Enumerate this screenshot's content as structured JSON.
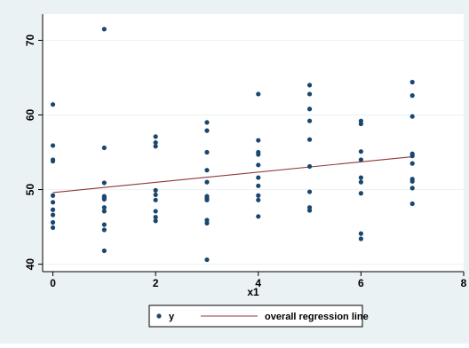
{
  "chart_data": {
    "type": "scatter",
    "title": "",
    "xlabel": "x1",
    "ylabel": "",
    "xlim": [
      -0.2,
      8.0
    ],
    "ylim": [
      39.0,
      73.5
    ],
    "xticks": [
      0,
      2,
      4,
      6,
      8
    ],
    "yticks": [
      40,
      50,
      60,
      70
    ],
    "grid": "horizontal",
    "legend_position": "bottom",
    "series": [
      {
        "name": "y",
        "kind": "scatter",
        "color": "#1a476f",
        "points": [
          [
            0,
            61.4
          ],
          [
            0,
            55.9
          ],
          [
            0,
            54.0
          ],
          [
            0,
            53.8
          ],
          [
            0,
            49.2
          ],
          [
            0,
            48.3
          ],
          [
            0,
            47.3
          ],
          [
            0,
            46.6
          ],
          [
            0,
            45.6
          ],
          [
            0,
            44.9
          ],
          [
            1,
            71.5
          ],
          [
            1,
            55.6
          ],
          [
            1,
            50.9
          ],
          [
            1,
            49.1
          ],
          [
            1,
            48.9
          ],
          [
            1,
            48.7
          ],
          [
            1,
            47.6
          ],
          [
            1,
            47.1
          ],
          [
            1,
            45.3
          ],
          [
            1,
            44.6
          ],
          [
            1,
            41.8
          ],
          [
            2,
            57.1
          ],
          [
            2,
            56.3
          ],
          [
            2,
            55.8
          ],
          [
            2,
            49.9
          ],
          [
            2,
            49.3
          ],
          [
            2,
            48.6
          ],
          [
            2,
            47.1
          ],
          [
            2,
            46.3
          ],
          [
            2,
            45.8
          ],
          [
            3,
            59.0
          ],
          [
            3,
            57.9
          ],
          [
            3,
            55.0
          ],
          [
            3,
            52.6
          ],
          [
            3,
            51.0
          ],
          [
            3,
            49.1
          ],
          [
            3,
            48.8
          ],
          [
            3,
            48.6
          ],
          [
            3,
            45.9
          ],
          [
            3,
            45.5
          ],
          [
            3,
            40.6
          ],
          [
            4,
            62.8
          ],
          [
            4,
            56.6
          ],
          [
            4,
            55.0
          ],
          [
            4,
            54.7
          ],
          [
            4,
            53.3
          ],
          [
            4,
            51.6
          ],
          [
            4,
            50.5
          ],
          [
            4,
            49.2
          ],
          [
            4,
            48.6
          ],
          [
            4,
            46.4
          ],
          [
            5,
            64.0
          ],
          [
            5,
            62.8
          ],
          [
            5,
            60.8
          ],
          [
            5,
            59.2
          ],
          [
            5,
            56.7
          ],
          [
            5,
            53.1
          ],
          [
            5,
            49.7
          ],
          [
            5,
            47.6
          ],
          [
            5,
            47.2
          ],
          [
            6,
            59.2
          ],
          [
            6,
            58.8
          ],
          [
            6,
            55.1
          ],
          [
            6,
            54.0
          ],
          [
            6,
            51.6
          ],
          [
            6,
            51.0
          ],
          [
            6,
            49.5
          ],
          [
            6,
            44.1
          ],
          [
            6,
            43.4
          ],
          [
            7,
            64.4
          ],
          [
            7,
            62.6
          ],
          [
            7,
            59.8
          ],
          [
            7,
            54.8
          ],
          [
            7,
            54.5
          ],
          [
            7,
            53.5
          ],
          [
            7,
            51.4
          ],
          [
            7,
            51.1
          ],
          [
            7,
            50.2
          ],
          [
            7,
            48.1
          ]
        ]
      },
      {
        "name": "overall regression line",
        "kind": "line",
        "color": "#90353b",
        "x": [
          0,
          7
        ],
        "y": [
          49.6,
          54.4
        ]
      }
    ]
  },
  "colors": {
    "outer_background": "#eaf2f3",
    "plot_background": "#ffffff",
    "gridline": "#eaf2f3",
    "marker": "#1a476f",
    "regression_line": "#90353b"
  }
}
